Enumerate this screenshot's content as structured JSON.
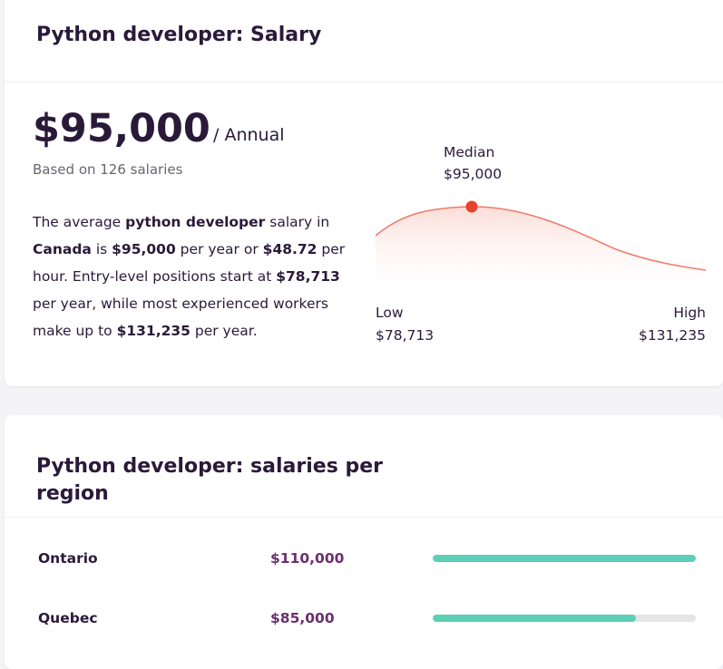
{
  "salary_card": {
    "title": "Python developer: Salary",
    "salary": "$95,000",
    "period": "/ Annual",
    "based_on": "Based on 126 salaries",
    "summary": {
      "t1": "The average ",
      "b1": "python developer",
      "t2": " salary in ",
      "b2": "Canada",
      "t3": " is ",
      "b3": "$95,000",
      "t4": " per year or ",
      "b4": "$48.72",
      "t5": " per hour. Entry-level positions start at ",
      "b5": "$78,713",
      "t6": " per year, while most experienced workers make up to ",
      "b6": "$131,235",
      "t7": " per year."
    },
    "chart": {
      "median_label": "Median",
      "median_value": "$95,000",
      "low_label": "Low",
      "low_value": "$78,713",
      "high_label": "High",
      "high_value": "$131,235",
      "curve_color": "#f07a6a",
      "marker_color": "#e8432f"
    }
  },
  "region_card": {
    "title": "Python developer: salaries per region",
    "regions": [
      {
        "name": "Ontario",
        "salary": "$110,000",
        "fill_fraction": 1.0
      },
      {
        "name": "Quebec",
        "salary": "$85,000",
        "fill_fraction": 0.773
      }
    ],
    "bar_color": "#5ccfb6"
  }
}
